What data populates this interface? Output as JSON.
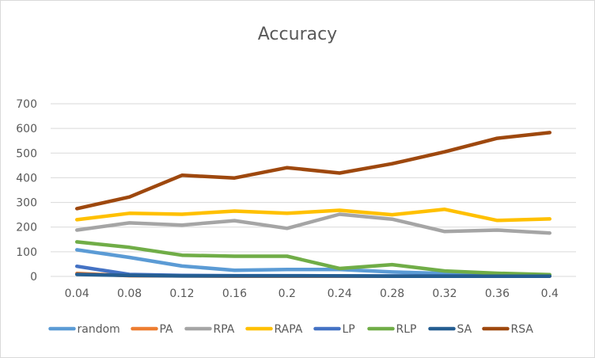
{
  "chart_data": {
    "type": "line",
    "title": "Accuracy",
    "xlabel": "",
    "ylabel": "",
    "categories": [
      "0.04",
      "0.08",
      "0.12",
      "0.16",
      "0.2",
      "0.24",
      "0.28",
      "0.32",
      "0.36",
      "0.4"
    ],
    "ylim": [
      0,
      700
    ],
    "yticks": [
      0,
      100,
      200,
      300,
      400,
      500,
      600,
      700
    ],
    "grid": true,
    "legend_position": "bottom",
    "series": [
      {
        "name": "random",
        "color": "#5b9bd5",
        "values": [
          108,
          77,
          42,
          25,
          28,
          28,
          18,
          12,
          8,
          5
        ]
      },
      {
        "name": "PA",
        "color": "#ed7d31",
        "values": [
          12,
          3,
          2,
          1,
          1,
          1,
          1,
          1,
          1,
          1
        ]
      },
      {
        "name": "RPA",
        "color": "#a5a5a5",
        "values": [
          188,
          217,
          208,
          226,
          195,
          252,
          232,
          182,
          188,
          176
        ]
      },
      {
        "name": "RAPA",
        "color": "#ffc000",
        "values": [
          230,
          256,
          252,
          265,
          256,
          268,
          250,
          272,
          227,
          233
        ]
      },
      {
        "name": "LP",
        "color": "#4472c4",
        "values": [
          41,
          8,
          4,
          3,
          3,
          2,
          2,
          2,
          2,
          2
        ]
      },
      {
        "name": "RLP",
        "color": "#70ad47",
        "values": [
          140,
          118,
          86,
          82,
          82,
          32,
          48,
          22,
          13,
          7
        ]
      },
      {
        "name": "SA",
        "color": "#255e91",
        "values": [
          8,
          4,
          2,
          2,
          2,
          2,
          1,
          1,
          1,
          1
        ]
      },
      {
        "name": "RSA",
        "color": "#9e480e",
        "values": [
          275,
          322,
          410,
          399,
          441,
          419,
          457,
          505,
          560,
          583
        ]
      }
    ]
  }
}
